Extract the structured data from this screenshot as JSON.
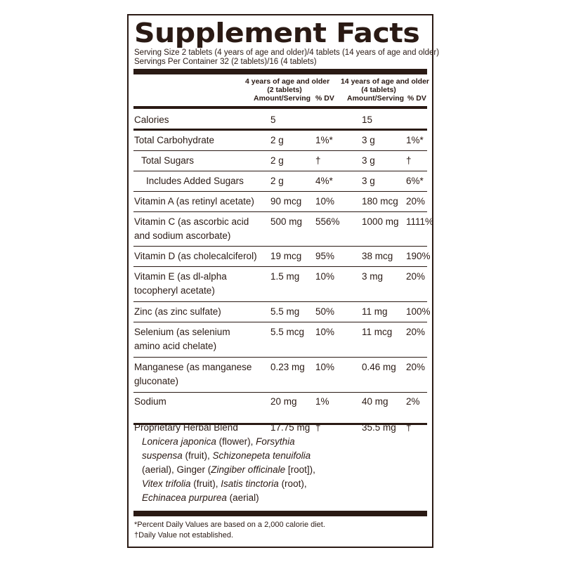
{
  "title": "Supplement Facts",
  "serving_size": "Serving Size 2 tablets (4 years of age and older)/4 tablets (14 years of age and older)",
  "servings_per_container": "Servings Per Container 32 (2 tablets)/16 (4 tablets)",
  "headers": {
    "group1_line1": "4 years of age and older",
    "group1_line2": "(2 tablets)",
    "group2_line1": "14 years of age and older",
    "group2_line2": "(4 tablets)",
    "amount": "Amount/Serving",
    "dv": "% DV"
  },
  "rows": [
    {
      "label": [
        "Calories"
      ],
      "a1": "5",
      "d1": "",
      "a2": "15",
      "d2": ""
    },
    {
      "label": [
        "Total Carbohydrate"
      ],
      "a1": "2 g",
      "d1": "1%*",
      "a2": "3 g",
      "d2": "1%*"
    },
    {
      "label": [
        "Total Sugars"
      ],
      "a1": "2 g",
      "d1": "†",
      "a2": "3 g",
      "d2": "†"
    },
    {
      "label": [
        "Includes Added Sugars"
      ],
      "a1": "2 g",
      "d1": "4%*",
      "a2": "3 g",
      "d2": "6%*"
    },
    {
      "label": [
        "Vitamin A (as retinyl acetate)"
      ],
      "a1": "90 mcg",
      "d1": "10%",
      "a2": "180 mcg",
      "d2": "20%"
    },
    {
      "label": [
        "Vitamin C (as ascorbic acid",
        "and sodium ascorbate)"
      ],
      "a1": "500 mg",
      "d1": "556%",
      "a2": "1000 mg",
      "d2": "1111%"
    },
    {
      "label": [
        "Vitamin D (as cholecalciferol)"
      ],
      "a1": "19 mcg",
      "d1": "95%",
      "a2": "38 mcg",
      "d2": "190%"
    },
    {
      "label": [
        "Vitamin E (as dl-alpha",
        "tocopheryl acetate)"
      ],
      "a1": "1.5 mg",
      "d1": "10%",
      "a2": "3 mg",
      "d2": "20%"
    },
    {
      "label": [
        "Zinc (as zinc sulfate)"
      ],
      "a1": "5.5 mg",
      "d1": "50%",
      "a2": "11 mg",
      "d2": "100%"
    },
    {
      "label": [
        "Selenium (as selenium",
        "amino acid chelate)"
      ],
      "a1": "5.5 mcg",
      "d1": "10%",
      "a2": "11 mcg",
      "d2": "20%"
    },
    {
      "label": [
        "Manganese (as manganese",
        "gluconate)"
      ],
      "a1": "0.23 mg",
      "d1": "10%",
      "a2": "0.46 mg",
      "d2": "20%"
    },
    {
      "label": [
        "Sodium"
      ],
      "a1": "20 mg",
      "d1": "1%",
      "a2": "40 mg",
      "d2": "2%"
    }
  ],
  "blend": {
    "label": "Proprietary Herbal Blend",
    "a1": "17.75 mg",
    "d1": "†",
    "a2": "35.5 mg",
    "d2": "†",
    "line1": {
      "p1": "Lonicera japonica",
      "p2": " (flower), ",
      "p3": "Forsythia"
    },
    "line2": {
      "p1": "suspensa",
      "p2": " (fruit), ",
      "p3": "Schizonepeta tenuifolia"
    },
    "line3": {
      "p1": "(aerial), Ginger (",
      "p2": "Zingiber officinale",
      "p3": " [root]),"
    },
    "line4": {
      "p1": "Vitex trifolia",
      "p2": " (fruit), ",
      "p3": "Isatis tinctoria",
      "p4": " (root),"
    },
    "line5": {
      "p1": "Echinacea purpurea",
      "p2": " (aerial)"
    }
  },
  "footnote1": "*Percent Daily Values are based on a 2,000 calorie diet.",
  "footnote2": "†Daily Value not established."
}
